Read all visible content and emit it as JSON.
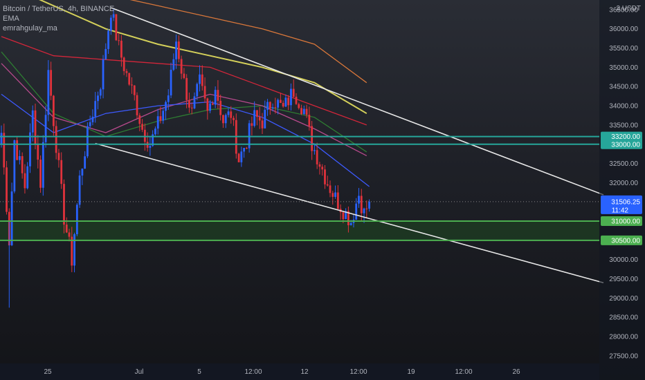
{
  "chart_data": {
    "type": "candlestick",
    "title": "Bitcoin / TetherUS, 4h, BINANCE",
    "indicators": [
      "EMA",
      "emrahgulay_ma"
    ],
    "currency": "USDT",
    "currency_scale_label": "3",
    "ylim": [
      27300,
      36750
    ],
    "price_ticks": [
      36500,
      36000,
      35500,
      35000,
      34500,
      34000,
      33500,
      33000,
      32500,
      32000,
      31500,
      31000,
      30500,
      30000,
      29500,
      29000,
      28500,
      28000,
      27500
    ],
    "price_tick_labels": [
      "36500.00",
      "36000.00",
      "35500.00",
      "35000.00",
      "34500.00",
      "34000.00",
      "33500.00",
      "33000.00",
      "32500.00",
      "32000.00",
      "31500.00",
      "31000.00",
      "30500.00",
      "30000.00",
      "29500.00",
      "29000.00",
      "28500.00",
      "28000.00",
      "27500.00"
    ],
    "time_axis_labels": [
      "25",
      "Jul",
      "5",
      "12:00",
      "12",
      "12:00",
      "19",
      "12:00",
      "26"
    ],
    "current_price": 31506.25,
    "current_price_label": "31506.25",
    "countdown": "11:42",
    "horizontal_levels": [
      {
        "label": "33200.00",
        "price": 33200,
        "color": "#26a69a"
      },
      {
        "label": "33000.00",
        "price": 33000,
        "color": "#26a69a"
      },
      {
        "label": "31000.00",
        "price": 31000,
        "color": "#4caf50"
      },
      {
        "label": "30500.00",
        "price": 30500,
        "color": "#4caf50"
      }
    ],
    "support_zone": [
      30500,
      31000
    ],
    "trendlines": [
      {
        "name": "upper",
        "from_bar": 42,
        "from_price": 36550,
        "to_bar": 236,
        "to_price": 31550
      },
      {
        "name": "lower",
        "from_bar": 36,
        "from_price": 33020,
        "to_bar": 236,
        "to_price": 29300
      }
    ],
    "price_path": [
      [
        0,
        33300
      ],
      [
        3,
        30500
      ],
      [
        5,
        33100
      ],
      [
        9,
        31900
      ],
      [
        12,
        33800
      ],
      [
        15,
        32000
      ],
      [
        18,
        34900
      ],
      [
        21,
        33000
      ],
      [
        24,
        31100
      ],
      [
        27,
        30000
      ],
      [
        30,
        32100
      ],
      [
        34,
        33600
      ],
      [
        38,
        34600
      ],
      [
        42,
        36500
      ],
      [
        45,
        35500
      ],
      [
        48,
        34800
      ],
      [
        51,
        34200
      ],
      [
        54,
        33400
      ],
      [
        57,
        33000
      ],
      [
        60,
        33500
      ],
      [
        64,
        34300
      ],
      [
        67,
        35700
      ],
      [
        70,
        34600
      ],
      [
        73,
        33800
      ],
      [
        76,
        34600
      ],
      [
        79,
        33800
      ],
      [
        82,
        34500
      ],
      [
        85,
        33600
      ],
      [
        88,
        33800
      ],
      [
        91,
        32600
      ],
      [
        94,
        33100
      ],
      [
        97,
        33700
      ],
      [
        100,
        33600
      ],
      [
        104,
        34200
      ],
      [
        108,
        33900
      ],
      [
        112,
        34400
      ],
      [
        116,
        33900
      ],
      [
        119,
        33000
      ],
      [
        121,
        32700
      ],
      [
        125,
        32000
      ],
      [
        128,
        31600
      ],
      [
        131,
        31300
      ],
      [
        134,
        31000
      ],
      [
        137,
        31700
      ],
      [
        139,
        31200
      ],
      [
        141,
        31500
      ]
    ],
    "ma_lines": [
      {
        "name": "yellow",
        "color": "#d4d05a",
        "points": [
          [
            0,
            37200
          ],
          [
            20,
            36600
          ],
          [
            40,
            36000
          ],
          [
            60,
            35600
          ],
          [
            80,
            35300
          ],
          [
            100,
            35000
          ],
          [
            120,
            34600
          ],
          [
            140,
            33800
          ]
        ]
      },
      {
        "name": "orange",
        "color": "#d9773a",
        "points": [
          [
            0,
            37800
          ],
          [
            20,
            37300
          ],
          [
            40,
            36900
          ],
          [
            60,
            36600
          ],
          [
            80,
            36300
          ],
          [
            100,
            36000
          ],
          [
            120,
            35600
          ],
          [
            140,
            34600
          ]
        ]
      },
      {
        "name": "red",
        "color": "#d3263a",
        "points": [
          [
            0,
            35800
          ],
          [
            20,
            35300
          ],
          [
            40,
            35200
          ],
          [
            60,
            35100
          ],
          [
            80,
            35000
          ],
          [
            100,
            34500
          ],
          [
            120,
            34000
          ],
          [
            140,
            33500
          ]
        ]
      },
      {
        "name": "green",
        "color": "#2e7d32",
        "points": [
          [
            0,
            35400
          ],
          [
            20,
            33800
          ],
          [
            40,
            33200
          ],
          [
            60,
            33600
          ],
          [
            80,
            33900
          ],
          [
            100,
            34000
          ],
          [
            120,
            33700
          ],
          [
            140,
            32800
          ]
        ]
      },
      {
        "name": "pink",
        "color": "#b74a8c",
        "points": [
          [
            0,
            35100
          ],
          [
            20,
            33700
          ],
          [
            40,
            33300
          ],
          [
            60,
            33900
          ],
          [
            80,
            34300
          ],
          [
            100,
            34000
          ],
          [
            120,
            33400
          ],
          [
            140,
            32700
          ]
        ]
      },
      {
        "name": "blue",
        "color": "#3d5afe",
        "points": [
          [
            0,
            34300
          ],
          [
            20,
            33300
          ],
          [
            40,
            33800
          ],
          [
            60,
            34000
          ],
          [
            80,
            34100
          ],
          [
            100,
            33700
          ],
          [
            120,
            33000
          ],
          [
            141,
            31900
          ]
        ]
      }
    ]
  }
}
